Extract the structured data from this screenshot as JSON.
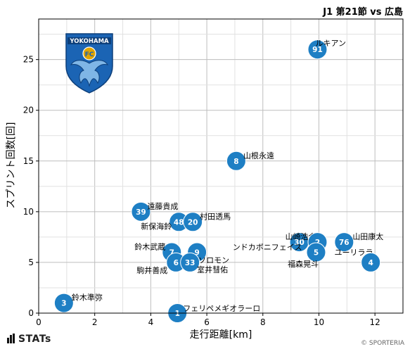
{
  "title": "J1 第21節 vs 広島",
  "chart_data": {
    "type": "scatter",
    "xlabel": "走行距離[km]",
    "ylabel": "スプリント回数[回]",
    "xlim": [
      0,
      13
    ],
    "ylim": [
      0,
      29
    ],
    "xticks": [
      0,
      2,
      4,
      6,
      8,
      10,
      12
    ],
    "yticks": [
      0,
      5,
      10,
      15,
      20,
      25
    ],
    "grid": true,
    "marker_color": "#1e7fc4",
    "points": [
      {
        "number": "91",
        "name": "ルキアン",
        "x": 9.95,
        "y": 26
      },
      {
        "number": "8",
        "name": "山根永遠",
        "x": 7.05,
        "y": 15
      },
      {
        "number": "39",
        "name": "遠藤貴成",
        "x": 3.65,
        "y": 10
      },
      {
        "number": "48",
        "name": "新保海鈴",
        "x": 5.0,
        "y": 9
      },
      {
        "number": "20",
        "name": "村田透馬",
        "x": 5.5,
        "y": 9
      },
      {
        "number": "30",
        "name": "山崎浩介",
        "x": 9.3,
        "y": 7
      },
      {
        "number": "2",
        "name": "ンドカボニフェイス",
        "x": 9.95,
        "y": 7
      },
      {
        "number": "76",
        "name": "山田康太",
        "x": 10.9,
        "y": 7
      },
      {
        "number": "5",
        "name": "ユーリララ",
        "x": 9.9,
        "y": 6
      },
      {
        "number": "7",
        "name": "鈴木武蔵",
        "x": 4.75,
        "y": 6
      },
      {
        "number": "9",
        "name": "櫻川ソロモン",
        "x": 5.65,
        "y": 6
      },
      {
        "number": "6",
        "name": "駒井善成",
        "x": 4.9,
        "y": 5
      },
      {
        "number": "33",
        "name": "室井彗佑",
        "x": 5.4,
        "y": 5
      },
      {
        "number": "4",
        "name": "福森晃斗",
        "x": 11.85,
        "y": 5
      },
      {
        "number": "3",
        "name": "鈴木準弥",
        "x": 0.9,
        "y": 1
      },
      {
        "number": "1",
        "name": "フェリペメギオラーロ",
        "x": 4.95,
        "y": 0
      }
    ]
  },
  "logo": {
    "text_top": "YOKOHAMA",
    "text_badge": "FC",
    "color_blue": "#1b64b4",
    "color_gold": "#e0a400"
  },
  "footer": {
    "brand": "STATs",
    "credit": "© SPORTERIA"
  }
}
